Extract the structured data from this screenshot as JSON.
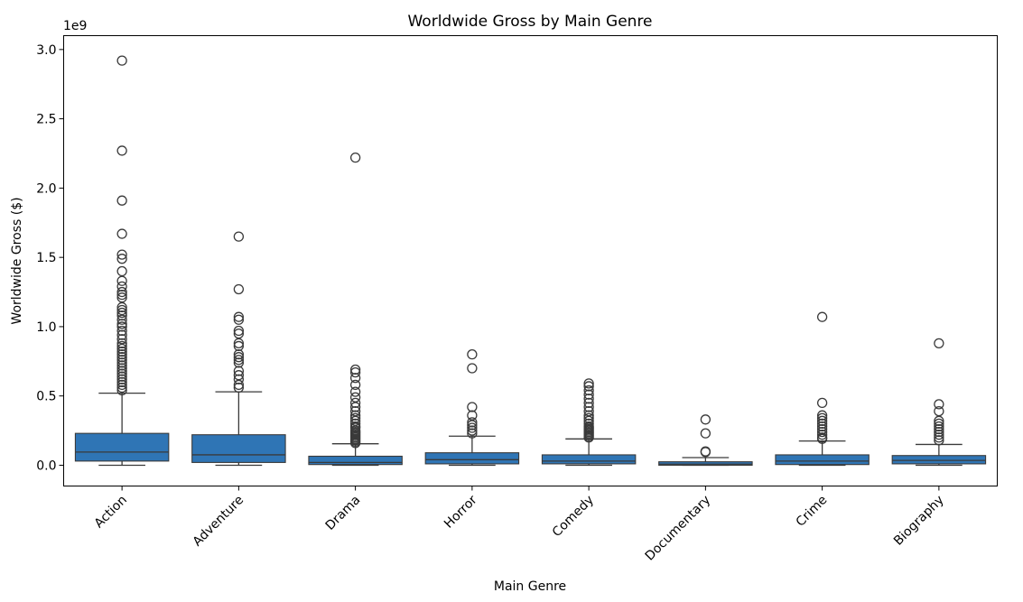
{
  "chart_data": {
    "type": "box",
    "title": "Worldwide Gross by Main Genre",
    "xlabel": "Main Genre",
    "ylabel": "Worldwide Gross ($)",
    "y_offset_label": "1e9",
    "y_scale_factor": 1000000000,
    "ylim": [
      -0.15,
      3.1
    ],
    "yticks": [
      0.0,
      0.5,
      1.0,
      1.5,
      2.0,
      2.5,
      3.0
    ],
    "ytick_labels": [
      "0.0",
      "0.5",
      "1.0",
      "1.5",
      "2.0",
      "2.5",
      "3.0"
    ],
    "grid": false,
    "box_color": "#2f75b5",
    "line_color": "#3a3a3a",
    "categories": [
      "Action",
      "Adventure",
      "Drama",
      "Horror",
      "Comedy",
      "Documentary",
      "Crime",
      "Biography"
    ],
    "boxes": [
      {
        "category": "Action",
        "whislo": 0.0,
        "q1": 0.03,
        "med": 0.095,
        "q3": 0.23,
        "whishi": 0.52,
        "fliers": [
          2.92,
          2.27,
          1.91,
          1.67,
          1.52,
          1.49,
          1.4,
          1.33,
          1.29,
          1.25,
          1.23,
          1.21,
          1.14,
          1.12,
          1.1,
          1.08,
          1.05,
          1.02,
          1.0,
          0.97,
          0.94,
          0.91,
          0.88,
          0.86,
          0.84,
          0.82,
          0.8,
          0.78,
          0.76,
          0.74,
          0.72,
          0.7,
          0.68,
          0.66,
          0.64,
          0.62,
          0.6,
          0.58,
          0.56,
          0.54
        ]
      },
      {
        "category": "Adventure",
        "whislo": 0.0,
        "q1": 0.02,
        "med": 0.075,
        "q3": 0.22,
        "whishi": 0.53,
        "fliers": [
          1.65,
          1.27,
          1.07,
          1.05,
          0.97,
          0.95,
          0.88,
          0.86,
          0.8,
          0.78,
          0.76,
          0.74,
          0.68,
          0.65,
          0.62,
          0.58,
          0.56
        ]
      },
      {
        "category": "Drama",
        "whislo": 0.0,
        "q1": 0.005,
        "med": 0.02,
        "q3": 0.065,
        "whishi": 0.155,
        "fliers": [
          2.22,
          0.69,
          0.67,
          0.63,
          0.58,
          0.53,
          0.49,
          0.45,
          0.42,
          0.39,
          0.36,
          0.34,
          0.32,
          0.3,
          0.28,
          0.27,
          0.25,
          0.24,
          0.23,
          0.22,
          0.21,
          0.2,
          0.19,
          0.18,
          0.17,
          0.16
        ]
      },
      {
        "category": "Horror",
        "whislo": 0.0,
        "q1": 0.01,
        "med": 0.04,
        "q3": 0.09,
        "whishi": 0.21,
        "fliers": [
          0.8,
          0.7,
          0.42,
          0.36,
          0.31,
          0.29,
          0.27,
          0.25,
          0.23
        ]
      },
      {
        "category": "Comedy",
        "whislo": 0.0,
        "q1": 0.01,
        "med": 0.03,
        "q3": 0.075,
        "whishi": 0.19,
        "fliers": [
          0.59,
          0.57,
          0.54,
          0.51,
          0.48,
          0.45,
          0.42,
          0.39,
          0.36,
          0.34,
          0.32,
          0.3,
          0.28,
          0.27,
          0.26,
          0.25,
          0.24,
          0.23,
          0.22,
          0.21,
          0.2
        ]
      },
      {
        "category": "Documentary",
        "whislo": 0.0,
        "q1": 0.0,
        "med": 0.008,
        "q3": 0.025,
        "whishi": 0.055,
        "fliers": [
          0.33,
          0.23,
          0.1,
          0.095
        ]
      },
      {
        "category": "Crime",
        "whislo": 0.0,
        "q1": 0.005,
        "med": 0.03,
        "q3": 0.075,
        "whishi": 0.175,
        "fliers": [
          1.07,
          0.45,
          0.36,
          0.34,
          0.32,
          0.3,
          0.28,
          0.26,
          0.24,
          0.22,
          0.2,
          0.19
        ]
      },
      {
        "category": "Biography",
        "whislo": 0.0,
        "q1": 0.01,
        "med": 0.035,
        "q3": 0.07,
        "whishi": 0.15,
        "fliers": [
          0.88,
          0.44,
          0.39,
          0.32,
          0.3,
          0.28,
          0.26,
          0.24,
          0.22,
          0.2,
          0.18
        ]
      }
    ]
  }
}
